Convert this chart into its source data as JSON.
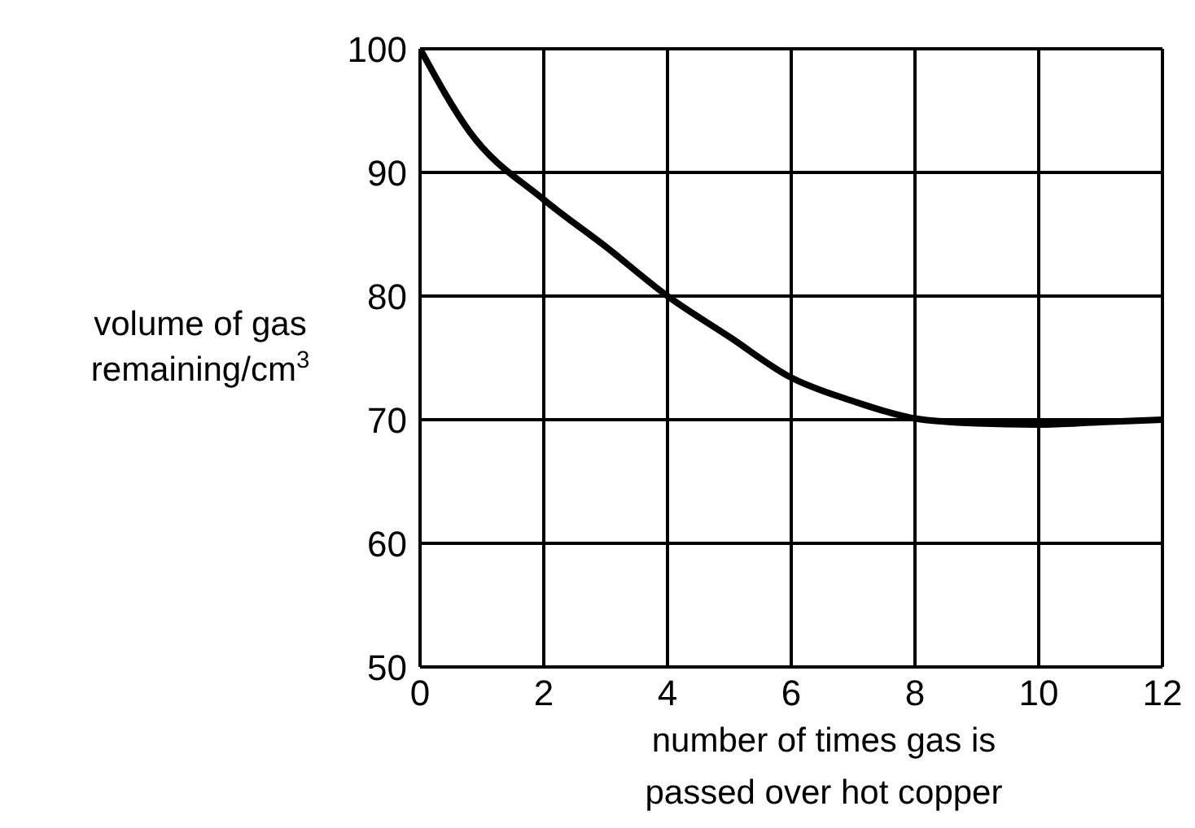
{
  "chart_data": {
    "type": "line",
    "xlabel": "number of times gas is\npassed over hot copper",
    "ylabel": "volume of gas\nremaining/cm$^{3}$",
    "x": [
      0,
      0.8,
      2,
      3,
      4,
      5,
      6,
      7,
      8,
      9,
      10,
      11,
      12
    ],
    "series": [
      {
        "color": "#000000",
        "values": [
          100,
          93.3,
          87.8,
          84,
          80,
          76.7,
          73.4,
          71.5,
          70.1,
          69.7,
          69.6,
          69.8,
          70
        ]
      }
    ],
    "xlim": [
      0,
      12
    ],
    "xticks": [
      0,
      2,
      4,
      6,
      8,
      10,
      12
    ],
    "ylim": [
      50,
      100
    ],
    "yticks": [
      50,
      60,
      70,
      80,
      90,
      100
    ],
    "grid": true,
    "marker": "none",
    "line_style": "solid",
    "legend": false
  }
}
